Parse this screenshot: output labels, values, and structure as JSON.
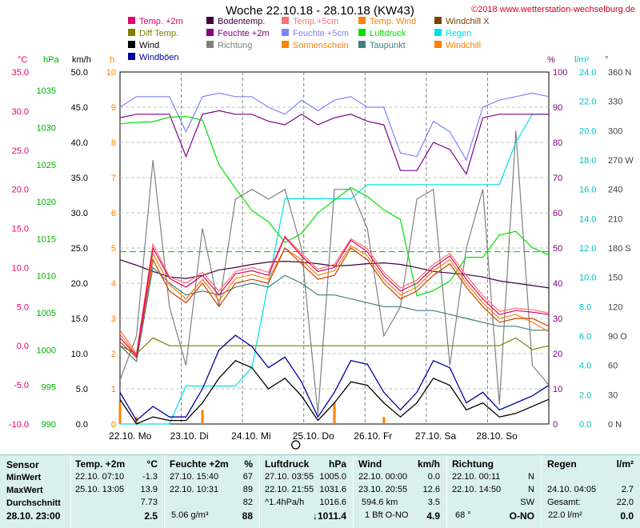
{
  "title": "Woche 22.10.18 - 28.10.18 (KW43)",
  "copyright": "©2018 www.wetterstation-wechselburg.de",
  "legend": [
    {
      "label": "Temp. +2m",
      "color": "#e0006e"
    },
    {
      "label": "Bodentemp.",
      "color": "#400040"
    },
    {
      "label": "Temp.+5cm",
      "color": "#ff7070"
    },
    {
      "label": "Temp. Wind",
      "color": "#ff8000"
    },
    {
      "label": "Windchill X",
      "color": "#804000"
    },
    {
      "label": "Diff Temp.",
      "color": "#808000"
    },
    {
      "label": "Feuchte +2m",
      "color": "#800080"
    },
    {
      "label": "Feuchte +5cm",
      "color": "#8080ff"
    },
    {
      "label": "Luftdruck",
      "color": "#00e000"
    },
    {
      "label": "Regen",
      "color": "#00e0e0"
    },
    {
      "label": "Wind",
      "color": "#000000"
    },
    {
      "label": "Richtung",
      "color": "#808080"
    },
    {
      "label": "Sonnenschein",
      "color": "#ff8000"
    },
    {
      "label": "Taupunkt",
      "color": "#408080"
    },
    {
      "label": "Windchill",
      "color": "#ff8000"
    },
    {
      "label": "Windböen",
      "color": "#0000a0"
    }
  ],
  "axis_units": {
    "temp": "°C",
    "hpa": "hPa",
    "kmh": "km/h",
    "h": "h",
    "pct": "%",
    "lm2": "l/m²",
    "deg": "°"
  },
  "chart_data": {
    "type": "line",
    "x_labels": [
      "22.10. Mo",
      "23.10. Di",
      "24.10. Mi",
      "25.10. Do",
      "26.10. Fr",
      "27.10. Sa",
      "28.10. So"
    ],
    "axes": {
      "temp": {
        "ticks": [
          "35.0",
          "30.0",
          "25.0",
          "20.0",
          "15.0",
          "10.0",
          "5.0",
          "0.0",
          "-5.0",
          "-10.0"
        ],
        "range": [
          -10,
          35
        ],
        "color": "#e0006e"
      },
      "hpa": {
        "ticks": [
          "1035",
          "1030",
          "1025",
          "1020",
          "1015",
          "1010",
          "1005",
          "1000",
          "995",
          "990"
        ],
        "range": [
          990,
          1037.5
        ],
        "color": "#00b000"
      },
      "kmh": {
        "ticks": [
          "50.0",
          "45.0",
          "40.0",
          "35.0",
          "30.0",
          "25.0",
          "20.0",
          "15.0",
          "10.0",
          "5.0",
          "0.0"
        ],
        "range": [
          0,
          50
        ],
        "color": "#000000"
      },
      "h": {
        "ticks": [
          "10",
          "9",
          "8",
          "7",
          "6",
          "5",
          "4",
          "3",
          "2",
          "1",
          "0"
        ],
        "range": [
          0,
          10
        ],
        "color": "#ff8000"
      },
      "pct": {
        "ticks": [
          "100",
          "90",
          "80",
          "70",
          "60",
          "50",
          "40",
          "30",
          "20",
          "10",
          "0"
        ],
        "range": [
          0,
          100
        ],
        "color": "#800080"
      },
      "lm2": {
        "ticks": [
          "24.0",
          "22.0",
          "20.0",
          "18.0",
          "16.0",
          "14.0",
          "12.0",
          "10.0",
          "8.0",
          "6.0",
          "4.0",
          "2.0",
          "0.0"
        ],
        "range": [
          0,
          25
        ],
        "color": "#00c0c0"
      },
      "deg": {
        "ticks": [
          "360 N",
          "330",
          "300",
          "270 W",
          "240",
          "210",
          "180 S",
          "150",
          "120",
          "90 O",
          "60",
          "30",
          "0 N"
        ],
        "range": [
          0,
          360
        ],
        "color": "#404040"
      }
    },
    "series": [
      {
        "name": "Temp. +2m",
        "axis": "temp",
        "color": "#e0006e",
        "values": [
          1.0,
          -1.3,
          12.5,
          8.6,
          7.5,
          9.0,
          6.5,
          9.2,
          9.6,
          9.0,
          13.9,
          11.5,
          9.5,
          10.0,
          13.5,
          12.0,
          9.0,
          7.0,
          8.0,
          10.0,
          11.5,
          8.5,
          6.0,
          4.0,
          4.5,
          4.3,
          4.0
        ]
      },
      {
        "name": "Temp.+5cm",
        "axis": "temp",
        "color": "#ff7070",
        "values": [
          2.0,
          -1.0,
          13.0,
          8.8,
          8.0,
          9.4,
          7.0,
          9.5,
          10.0,
          9.4,
          14.0,
          11.8,
          9.8,
          10.4,
          13.7,
          12.4,
          9.4,
          7.4,
          8.4,
          10.4,
          11.8,
          9.0,
          6.4,
          4.4,
          4.8,
          4.6,
          4.2
        ]
      },
      {
        "name": "Temp. Wind",
        "axis": "temp",
        "color": "#ff8000",
        "values": [
          1.5,
          -1.2,
          11.8,
          7.8,
          6.0,
          8.5,
          5.8,
          8.6,
          9.1,
          8.5,
          12.5,
          11.0,
          9.0,
          9.6,
          12.8,
          11.5,
          8.5,
          6.5,
          7.5,
          9.6,
          11.0,
          8.0,
          5.5,
          3.5,
          4.0,
          3.0,
          1.8
        ]
      },
      {
        "name": "Windchill",
        "axis": "temp",
        "color": "#d04000",
        "values": [
          0.5,
          -1.5,
          11.0,
          7.0,
          5.5,
          8.0,
          5.0,
          8.0,
          8.5,
          8.0,
          12.5,
          10.5,
          8.5,
          9.0,
          12.5,
          11.0,
          8.0,
          6.0,
          7.0,
          9.0,
          10.5,
          7.5,
          5.0,
          3.0,
          3.5,
          3.5,
          2.5
        ]
      },
      {
        "name": "Bodentemp.",
        "axis": "temp",
        "color": "#400040",
        "values": [
          11.0,
          10.3,
          9.5,
          8.8,
          8.6,
          9.0,
          9.7,
          10.0,
          10.4,
          10.7,
          10.8,
          10.7,
          10.5,
          10.2,
          10.3,
          10.5,
          10.6,
          10.4,
          10.0,
          9.5,
          9.3,
          9.1,
          8.8,
          8.3,
          8.0,
          7.7,
          7.4
        ]
      },
      {
        "name": "Taupunkt",
        "axis": "temp",
        "color": "#408080",
        "values": [
          0.0,
          -2.0,
          10.0,
          8.0,
          6.5,
          7.0,
          6.5,
          7.5,
          8.0,
          7.5,
          9.0,
          8.0,
          6.5,
          6.5,
          6.0,
          5.5,
          5.0,
          5.0,
          4.5,
          4.5,
          4.0,
          3.5,
          3.0,
          2.5,
          2.5,
          2.0,
          2.0
        ]
      },
      {
        "name": "Diff Temp.",
        "axis": "temp",
        "color": "#808000",
        "values": [
          0.0,
          -1.0,
          1.0,
          0.0,
          0.0,
          0.0,
          0.0,
          0.0,
          0.0,
          0.0,
          0.0,
          0.0,
          0.0,
          0.0,
          0.0,
          0.0,
          0.0,
          0.0,
          0.0,
          0.0,
          0.0,
          0.0,
          0.0,
          0.0,
          1.0,
          -0.5,
          0.0
        ]
      },
      {
        "name": "Luftdruck",
        "axis": "hpa",
        "color": "#00e000",
        "values": [
          1030.5,
          1030.7,
          1030.8,
          1031.4,
          1031.5,
          1031.0,
          1025.0,
          1021.8,
          1018.8,
          1017.3,
          1014.5,
          1015.7,
          1018.5,
          1020.2,
          1021.9,
          1020.7,
          1018.9,
          1017.6,
          1007.3,
          1008.0,
          1009.3,
          1012.5,
          1012.5,
          1015.5,
          1016.0,
          1013.8,
          1012.8
        ]
      },
      {
        "name": "Feuchte +2m",
        "axis": "pct",
        "color": "#800080",
        "values": [
          87,
          88,
          88,
          88,
          76,
          88,
          89,
          88,
          88,
          86,
          85,
          88,
          85,
          87,
          88,
          86,
          85,
          72,
          72,
          80,
          78,
          71,
          87,
          88,
          88,
          88,
          88
        ]
      },
      {
        "name": "Feuchte +5cm",
        "axis": "pct",
        "color": "#8080ff",
        "values": [
          90,
          93,
          93,
          93,
          83,
          93,
          94,
          93,
          93,
          90,
          88,
          92,
          89,
          92,
          93,
          90,
          90,
          77,
          76,
          86,
          83,
          75,
          90,
          92,
          93,
          94,
          93
        ]
      },
      {
        "name": "Regen",
        "axis": "lm2",
        "color": "#00e0e0",
        "values": [
          0.0,
          0.0,
          0.0,
          0.0,
          2.7,
          2.7,
          2.7,
          2.7,
          4.0,
          10.0,
          16.0,
          16.0,
          16.0,
          16.0,
          16.0,
          17.0,
          17.0,
          17.0,
          17.0,
          17.0,
          17.0,
          17.0,
          17.0,
          17.0,
          20.0,
          22.0,
          22.0
        ]
      },
      {
        "name": "Wind",
        "axis": "kmh",
        "color": "#000000",
        "values": [
          3.5,
          0.0,
          1.0,
          0.5,
          0.5,
          3.0,
          6.5,
          9.0,
          8.0,
          5.0,
          6.5,
          4.0,
          0.5,
          3.0,
          6.0,
          5.5,
          3.0,
          1.0,
          3.0,
          6.5,
          5.5,
          2.0,
          3.0,
          1.0,
          1.5,
          2.5,
          3.5
        ]
      },
      {
        "name": "Windböen",
        "axis": "kmh",
        "color": "#0000a0",
        "values": [
          4.5,
          0.5,
          2.5,
          1.0,
          1.0,
          5.0,
          10.5,
          12.6,
          11.0,
          8.0,
          9.5,
          6.0,
          1.0,
          4.5,
          9.0,
          8.5,
          4.5,
          2.0,
          4.5,
          9.0,
          8.0,
          3.0,
          4.5,
          2.0,
          3.0,
          4.0,
          5.5
        ]
      },
      {
        "name": "Richtung",
        "axis": "deg",
        "color": "#808080",
        "values": [
          45,
          90,
          270,
          120,
          60,
          200,
          120,
          230,
          240,
          230,
          240,
          180,
          10,
          240,
          240,
          200,
          90,
          120,
          230,
          240,
          60,
          180,
          240,
          20,
          300,
          60,
          40
        ]
      },
      {
        "name": "Sonnenschein",
        "axis": "h",
        "color": "#ff8000",
        "type": "bar",
        "values": [
          0.6,
          0.2,
          0,
          0,
          0,
          0.4,
          0,
          0,
          0,
          0,
          0,
          0,
          0,
          0.6,
          0,
          0,
          0.2,
          0,
          0,
          0,
          0,
          0,
          0,
          0,
          0,
          0,
          0
        ]
      }
    ]
  },
  "table": {
    "labels": {
      "sensor": "Sensor",
      "min": "MinWert",
      "max": "MaxWert",
      "avg": "Durchschnitt",
      "cur": "28.10. 23:00"
    },
    "temp": {
      "title": "Temp. +2m",
      "unit": "°C",
      "min_time": "22.10. 07:10",
      "min_val": "-1.3",
      "max_time": "25.10. 13:05",
      "max_val": "13.9",
      "avg": "7.73",
      "cur": "2.5"
    },
    "hum": {
      "title": "Feuchte +2m",
      "unit": "%",
      "min_time": "27.10. 15:40",
      "min_val": "67",
      "max_time": "22.10. 10:31",
      "max_val": "89",
      "avg": "82",
      "cur_extra": "5.06 g/m³",
      "cur": "88"
    },
    "press": {
      "title": "Luftdruck",
      "unit": "hPa",
      "min_time": "27.10. 03:55",
      "min_val": "1005.0",
      "max_time": "22.10. 21:55",
      "max_val": "1031.6",
      "avg_label": "^1.4hPa/h",
      "avg": "1016.6",
      "cur": "↓1011.4"
    },
    "wind": {
      "title": "Wind",
      "unit": "km/h",
      "min_time": "22.10. 00:00",
      "min_val": "0.0",
      "max_time": "23.10. 20:55",
      "max_val": "12.6",
      "avg_label": "594.6 km",
      "avg": "3.5",
      "cur_label": "1 Bft O-NO",
      "cur": "4.9"
    },
    "dir": {
      "title": "Richtung",
      "min_time": "22.10. 00:11",
      "min_val": "N",
      "max_time": "22.10. 14:50",
      "max_val": "N",
      "avg": "SW",
      "cur_label": "68 °",
      "cur": "O-NO"
    },
    "rain": {
      "title": "Regen",
      "unit": "l/m²",
      "min_time": "",
      "min_val": "",
      "max_time": "24.10. 04:05",
      "max_val": "2.7",
      "avg_label": "Gesamt:",
      "avg": "22.0",
      "cur_label": "22.0 l/m²",
      "cur": "0.0"
    }
  }
}
